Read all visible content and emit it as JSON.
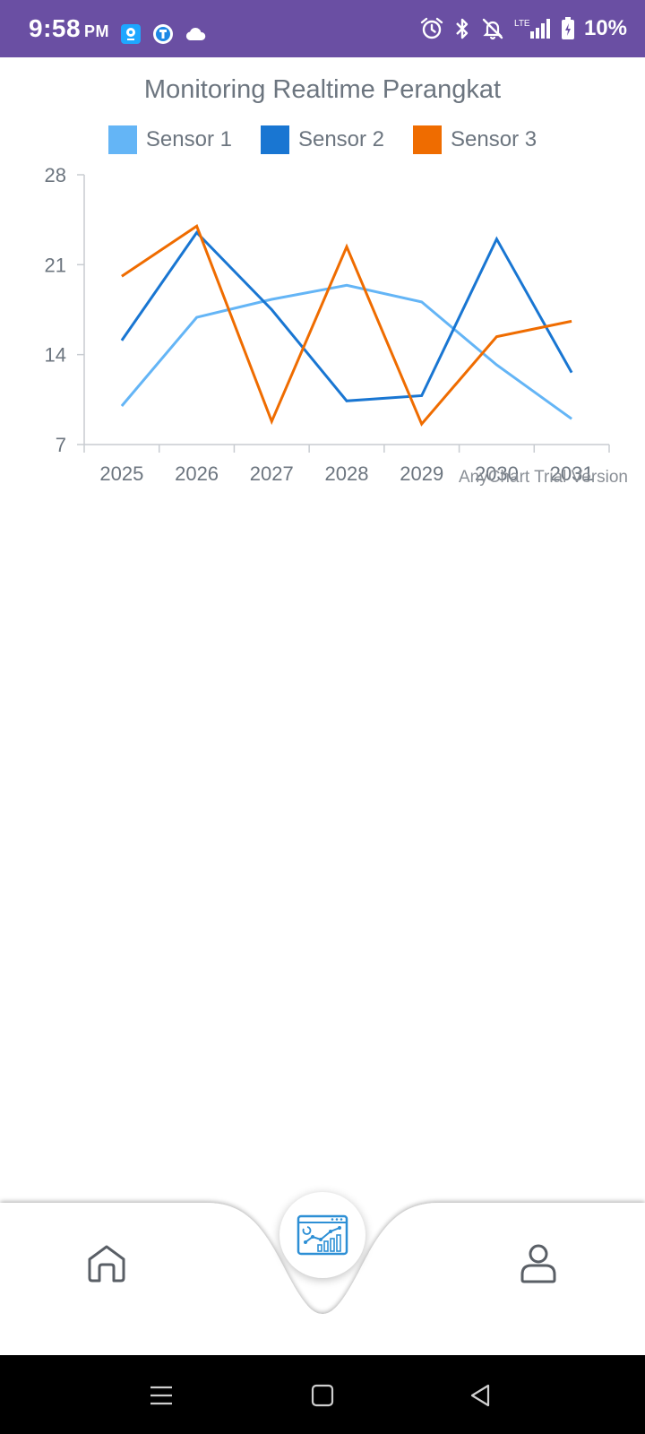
{
  "status_bar": {
    "time": "9:58",
    "ampm": "PM",
    "battery": "10%",
    "network": "LTE",
    "background_color": "#6a4fa3",
    "icons": [
      "app-icon-1",
      "app-icon-2",
      "cloud-icon",
      "alarm-icon",
      "bluetooth-icon",
      "bell-off-icon",
      "signal-icon",
      "battery-charging-icon"
    ]
  },
  "chart_data": {
    "type": "line",
    "title": "Monitoring Realtime Perangkat",
    "categories": [
      "2025",
      "2026",
      "2027",
      "2028",
      "2029",
      "2030",
      "2031"
    ],
    "series": [
      {
        "name": "Sensor 1",
        "color": "#64b5f6",
        "values": [
          10,
          16.9,
          18.3,
          19.4,
          18.1,
          13.2,
          9.0
        ]
      },
      {
        "name": "Sensor 2",
        "color": "#1976d2",
        "values": [
          15.1,
          23.5,
          17.5,
          10.4,
          10.8,
          23.0,
          12.6
        ]
      },
      {
        "name": "Sensor 3",
        "color": "#ef6c00",
        "values": [
          20.1,
          24.0,
          8.8,
          22.4,
          8.6,
          15.4,
          16.6
        ]
      }
    ],
    "ylim": [
      7,
      28
    ],
    "yticks": [
      "28",
      "21",
      "14",
      "7"
    ],
    "legend_position": "top",
    "grid": false,
    "watermark": "AnyChart Trial Version"
  },
  "bottom_nav": {
    "items": [
      "home-icon",
      "dashboard-chart-icon",
      "profile-icon"
    ],
    "active": "dashboard-chart-icon"
  },
  "system_nav": {
    "items": [
      "menu-icon",
      "home-square-icon",
      "back-icon"
    ]
  }
}
